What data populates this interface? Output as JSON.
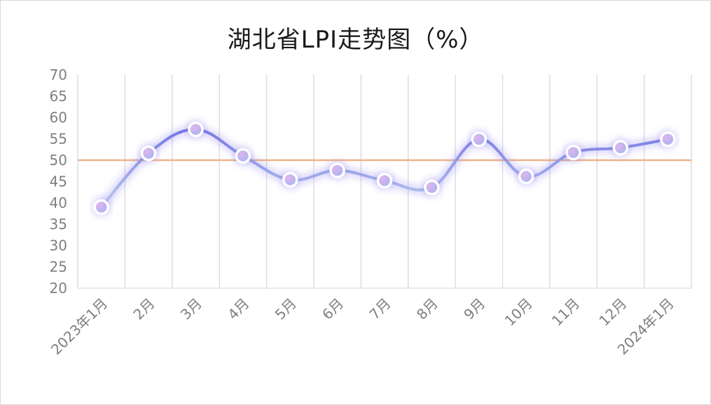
{
  "chart_data": {
    "type": "line",
    "title": "湖北省LPI走势图（%）",
    "categories": [
      "2023年1月",
      "2月",
      "3月",
      "4月",
      "5月",
      "6月",
      "7月",
      "8月",
      "9月",
      "10月",
      "11月",
      "12月",
      "2024年1月"
    ],
    "series": [
      {
        "values": [
          39.0,
          51.6,
          57.2,
          51.0,
          45.4,
          47.6,
          45.2,
          43.6,
          54.9,
          46.2,
          51.8,
          52.9,
          54.9
        ]
      }
    ],
    "reference_line": 50,
    "ylim": [
      20,
      70
    ],
    "yticks": [
      20,
      25,
      30,
      35,
      40,
      45,
      50,
      55,
      60,
      65,
      70
    ],
    "xlabel": "",
    "ylabel": "",
    "grid": "vertical",
    "legend": "none"
  },
  "colors": {
    "line": "#7b78e6",
    "line_light": "#b8c8ec",
    "glow": "#8a7cf0",
    "reference": "#f0b38a",
    "marker_fill": "#c9a5ee",
    "marker_stroke": "#ffffff",
    "grid": "#d9d9d9",
    "tick_text": "#7f7f7f"
  }
}
